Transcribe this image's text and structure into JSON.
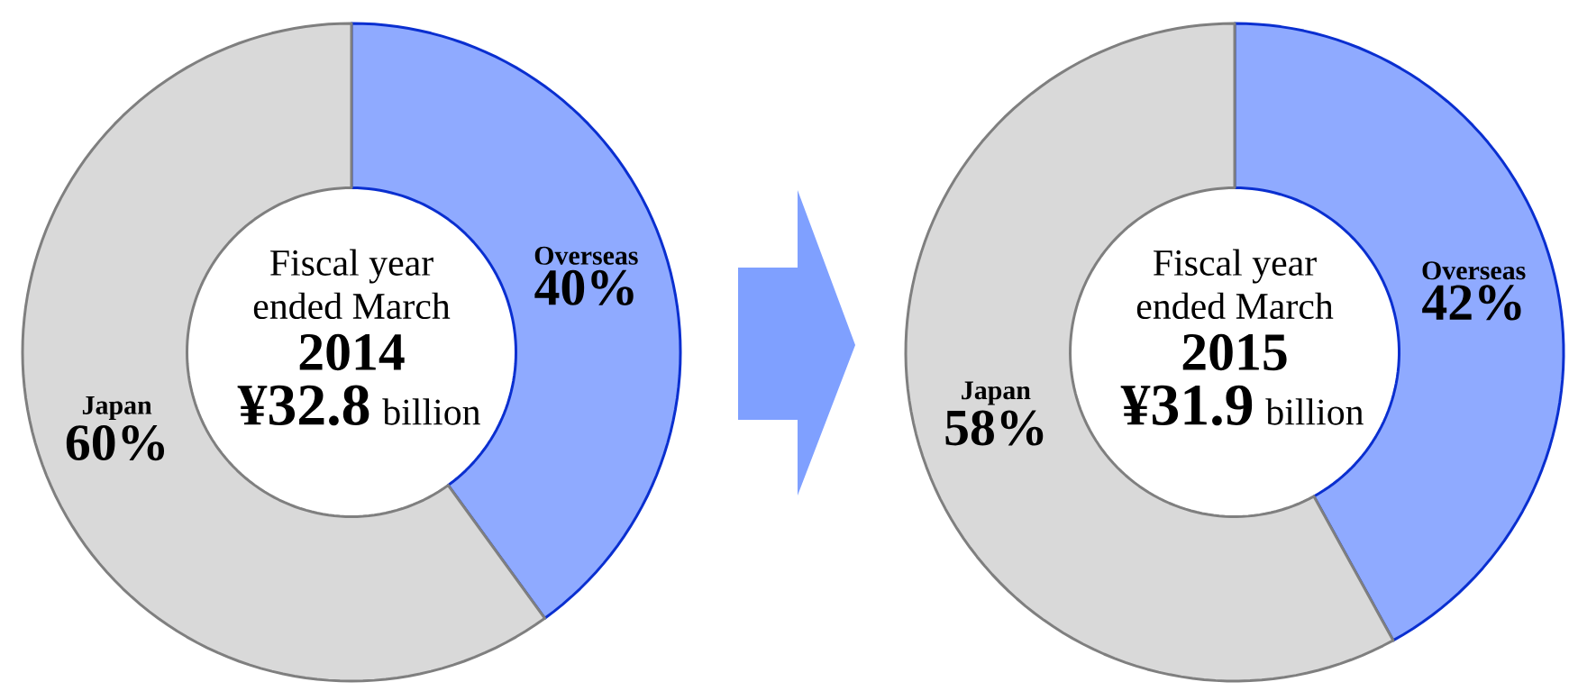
{
  "chart_data": [
    {
      "type": "donut",
      "title": "Fiscal year ended March",
      "subtitle": "2014",
      "annotations": [
        "¥32.8",
        "billion"
      ],
      "categories": [
        "Overseas",
        "Japan"
      ],
      "values": [
        40,
        60
      ],
      "value_labels": [
        "40%",
        "60%"
      ],
      "colors": [
        "#8faaff",
        "#d9d9d9"
      ]
    },
    {
      "type": "donut",
      "title": "Fiscal year ended March",
      "subtitle": "2015",
      "annotations": [
        "¥31.9",
        "billion"
      ],
      "categories": [
        "Overseas",
        "Japan"
      ],
      "values": [
        42,
        58
      ],
      "value_labels": [
        "42%",
        "58%"
      ],
      "colors": [
        "#8faaff",
        "#d9d9d9"
      ]
    }
  ]
}
